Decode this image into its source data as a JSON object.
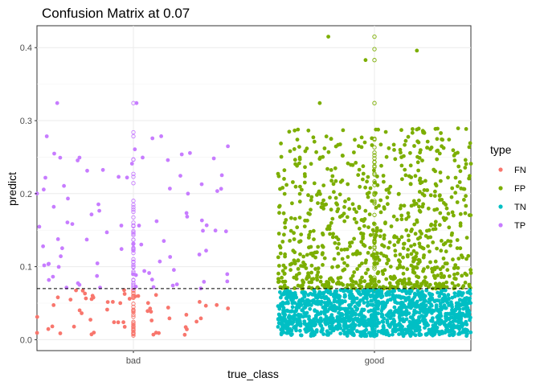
{
  "chart_data": {
    "type": "scatter",
    "title": "Confusion Matrix at 0.07",
    "xlabel": "true_class",
    "ylabel": "predict",
    "categories": [
      "bad",
      "good"
    ],
    "ylim": [
      -0.015,
      0.43
    ],
    "yticks": [
      0.0,
      0.1,
      0.2,
      0.3,
      0.4
    ],
    "ytick_labels": [
      "0.0",
      "0.1",
      "0.2",
      "0.3",
      "0.4"
    ],
    "threshold": 0.07,
    "grid": true,
    "legend_position": "right",
    "legend": {
      "title": "type",
      "items": [
        {
          "label": "FN",
          "color": "#F8766D"
        },
        {
          "label": "FP",
          "color": "#7CAE00"
        },
        {
          "label": "TN",
          "color": "#00BFC4"
        },
        {
          "label": "TP",
          "color": "#C77CFF"
        }
      ]
    },
    "series": [
      {
        "name": "FN",
        "category": "bad",
        "jitter": 0.4,
        "n": 55,
        "min": 0.005,
        "max": 0.068
      },
      {
        "name": "TP",
        "category": "bad",
        "jitter": 0.4,
        "n": 80,
        "min": 0.07,
        "max": 0.285,
        "extra": [
          0.324,
          0.324,
          0.2785,
          0.2325,
          0.2455,
          0.223,
          0.2,
          0.1685,
          0.1495,
          0.147
        ]
      },
      {
        "name": "FP",
        "category": "good",
        "jitter": 0.4,
        "n": 850,
        "min": 0.07,
        "max": 0.29,
        "extra": [
          0.415,
          0.396,
          0.383,
          0.324,
          0.2865,
          0.2865
        ]
      },
      {
        "name": "TN",
        "category": "good",
        "jitter": 0.4,
        "n": 1300,
        "min": 0.005,
        "max": 0.068
      },
      {
        "name": "TP",
        "category": "bad",
        "jitter": 0.0,
        "n": 45,
        "min": 0.07,
        "max": 0.25,
        "open": true,
        "extra": [
          0.324,
          0.284,
          0.2785
        ]
      },
      {
        "name": "FN",
        "category": "bad",
        "jitter": 0.0,
        "n": 35,
        "min": 0.005,
        "max": 0.068,
        "open": true
      },
      {
        "name": "FP",
        "category": "good",
        "jitter": 0.0,
        "n": 60,
        "min": 0.07,
        "max": 0.28,
        "open": true,
        "extra": [
          0.415,
          0.398,
          0.383,
          0.324
        ]
      },
      {
        "name": "TN",
        "category": "good",
        "jitter": 0.0,
        "n": 40,
        "min": 0.005,
        "max": 0.068,
        "open": true
      }
    ]
  }
}
